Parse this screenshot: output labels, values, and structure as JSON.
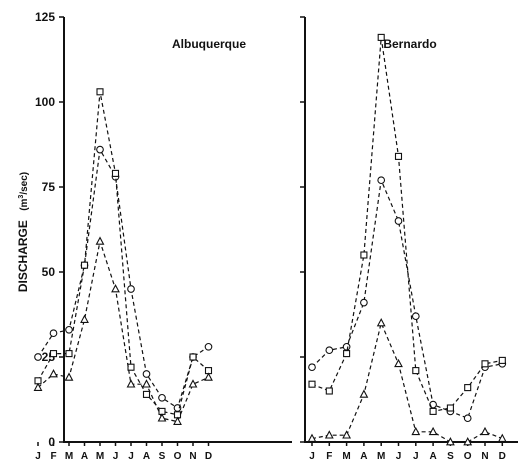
{
  "chart_data": [
    {
      "type": "line",
      "title": "Albuquerque",
      "ylabel": "DISCHARGE (m3/sec)",
      "ylabel_main": "DISCHARGE",
      "ylabel_unit": "(m",
      "ylabel_unit_sup": "3",
      "ylabel_unit_rest": "/sec)",
      "ylim": [
        0,
        125
      ],
      "yticks": [
        "0",
        "25",
        "50",
        "75",
        "100",
        "125"
      ],
      "ytick_values": [
        0,
        25,
        50,
        75,
        100,
        125
      ],
      "categories": [
        "J",
        "F",
        "M",
        "A",
        "M",
        "J",
        "J",
        "A",
        "S",
        "O",
        "N",
        "D"
      ],
      "grid": false,
      "series": [
        {
          "marker": "circle",
          "values": [
            25,
            32,
            33,
            52,
            86,
            78,
            45,
            20,
            13,
            10,
            25,
            28
          ]
        },
        {
          "marker": "square",
          "values": [
            18,
            26,
            26,
            52,
            103,
            79,
            22,
            14,
            9,
            8,
            25,
            21
          ]
        },
        {
          "marker": "triangle",
          "values": [
            16,
            20,
            19,
            36,
            59,
            45,
            17,
            17,
            7,
            6,
            17,
            19
          ]
        }
      ]
    },
    {
      "type": "line",
      "title": "Bernardo",
      "ylim": [
        0,
        125
      ],
      "categories": [
        "J",
        "F",
        "M",
        "A",
        "M",
        "J",
        "J",
        "A",
        "S",
        "O",
        "N",
        "D"
      ],
      "grid": false,
      "series": [
        {
          "marker": "circle",
          "values": [
            22,
            27,
            28,
            41,
            77,
            65,
            37,
            11,
            9,
            7,
            22,
            23
          ]
        },
        {
          "marker": "square",
          "values": [
            17,
            15,
            26,
            55,
            119,
            84,
            21,
            9,
            10,
            16,
            23,
            24
          ]
        },
        {
          "marker": "triangle",
          "values": [
            1,
            2,
            2,
            14,
            35,
            23,
            3,
            3,
            0,
            0,
            3,
            1
          ]
        }
      ]
    }
  ]
}
